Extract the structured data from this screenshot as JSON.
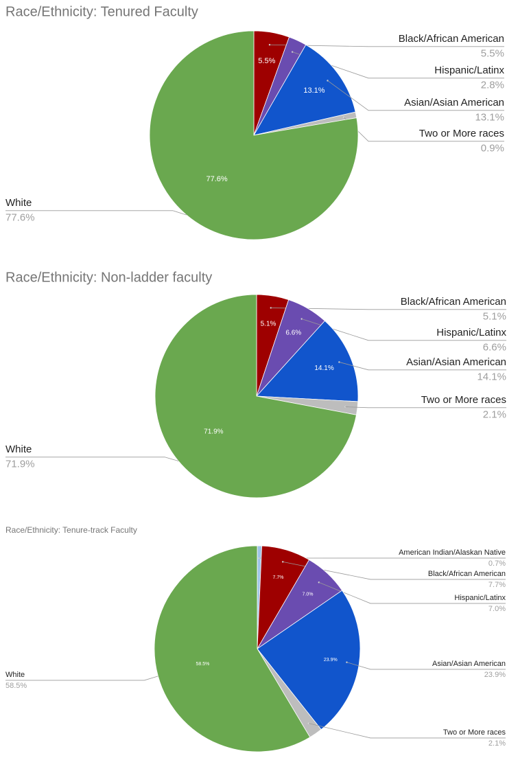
{
  "chart_data": [
    {
      "type": "pie",
      "title": "Race/Ethnicity: Tenured Faculty",
      "categories": [
        "Black/African American",
        "Hispanic/Latinx",
        "Asian/Asian American",
        "Two or More races",
        "White"
      ],
      "values": [
        5.5,
        2.8,
        13.1,
        0.9,
        77.6
      ],
      "value_labels": [
        "5.5%",
        "2.8%",
        "13.1%",
        "0.9%",
        "77.6%"
      ],
      "colors": [
        "#9e0000",
        "#6a4cb0",
        "#1155cc",
        "#bdbdbd",
        "#6aa84f"
      ]
    },
    {
      "type": "pie",
      "title": "Race/Ethnicity: Non-ladder faculty",
      "categories": [
        "Black/African American",
        "Hispanic/Latinx",
        "Asian/Asian American",
        "Two or More races",
        "White"
      ],
      "values": [
        5.1,
        6.6,
        14.1,
        2.1,
        71.9
      ],
      "value_labels": [
        "5.1%",
        "6.6%",
        "14.1%",
        "2.1%",
        "71.9%"
      ],
      "colors": [
        "#9e0000",
        "#6a4cb0",
        "#1155cc",
        "#bdbdbd",
        "#6aa84f"
      ]
    },
    {
      "type": "pie",
      "title": "Race/Ethnicity: Tenure-track Faculty",
      "categories": [
        "American Indian/Alaskan Native",
        "Black/African American",
        "Hispanic/Latinx",
        "Asian/Asian American",
        "Two or More races",
        "White"
      ],
      "values": [
        0.7,
        7.7,
        7.0,
        23.9,
        2.1,
        58.5
      ],
      "value_labels": [
        "0.7%",
        "7.7%",
        "7.0%",
        "23.9%",
        "2.1%",
        "58.5%"
      ],
      "colors": [
        "#9fc5e8",
        "#9e0000",
        "#6a4cb0",
        "#1155cc",
        "#bdbdbd",
        "#6aa84f"
      ]
    }
  ]
}
